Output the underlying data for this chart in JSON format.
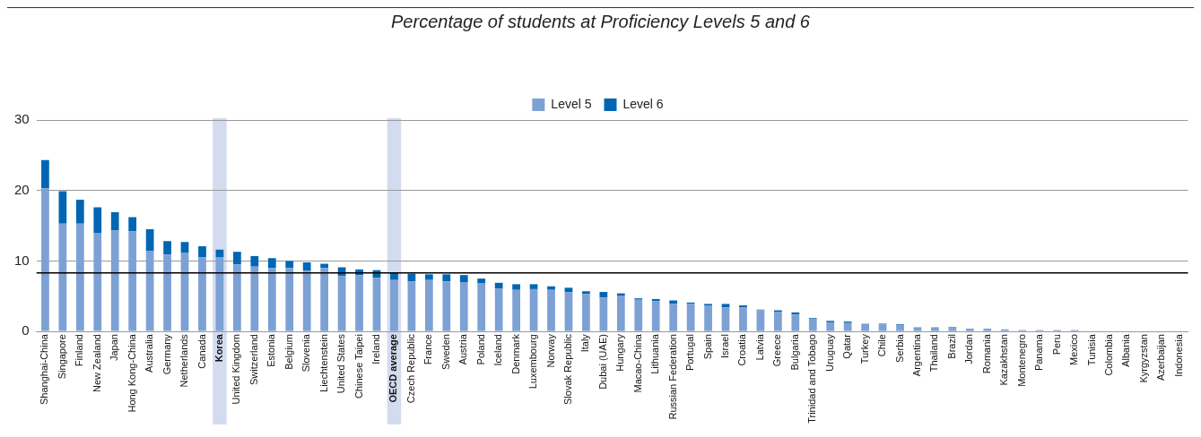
{
  "chart_data": {
    "type": "bar",
    "title": "Percentage of students at Proficiency Levels 5 and 6",
    "stacked": true,
    "categories": [
      "Shanghai-China",
      "Singapore",
      "Finland",
      "New Zealand",
      "Japan",
      "Hong Kong-China",
      "Australia",
      "Germany",
      "Netherlands",
      "Canada",
      "Korea",
      "United Kingdom",
      "Switzerland",
      "Estonia",
      "Belgium",
      "Slovenia",
      "Liechtenstein",
      "United States",
      "Chinese Taipei",
      "Ireland",
      "OECD average",
      "Czech Republic",
      "France",
      "Sweden",
      "Austria",
      "Poland",
      "Iceland",
      "Denmark",
      "Luxembourg",
      "Norway",
      "Slovak Republic",
      "Italy",
      "Dubai (UAE)",
      "Hungary",
      "Macao-China",
      "Lithuania",
      "Russian Federation",
      "Portugal",
      "Spain",
      "Israel",
      "Croatia",
      "Latvia",
      "Greece",
      "Bulgaria",
      "Trinidad and Tobago",
      "Uruguay",
      "Qatar",
      "Turkey",
      "Chile",
      "Serbia",
      "Argentina",
      "Thailand",
      "Brazil",
      "Jordan",
      "Romania",
      "Kazakhstan",
      "Montenegro",
      "Panama",
      "Peru",
      "Mexico",
      "Tunisia",
      "Colombia",
      "Albania",
      "Kyrgyzstan",
      "Azerbaijan",
      "Indonesia"
    ],
    "series": [
      {
        "name": "Level 5",
        "color": "#7da1d4",
        "values": [
          20.3,
          15.3,
          15.3,
          14.0,
          14.3,
          14.2,
          11.4,
          10.9,
          11.2,
          10.5,
          10.5,
          9.5,
          9.2,
          9.0,
          9.0,
          8.6,
          9.0,
          7.9,
          8.0,
          7.6,
          7.3,
          7.1,
          7.3,
          7.1,
          7.0,
          6.8,
          6.1,
          5.9,
          6.0,
          5.9,
          5.6,
          5.3,
          4.8,
          5.1,
          4.5,
          4.3,
          3.9,
          3.9,
          3.7,
          3.4,
          3.4,
          3.0,
          2.8,
          2.4,
          1.8,
          1.3,
          1.2,
          1.1,
          1.0,
          0.9,
          0.6,
          0.6,
          0.5,
          0.4,
          0.4,
          0.3,
          0.2,
          0.2,
          0.2,
          0.2,
          null,
          null,
          null,
          0.0,
          0.0,
          0.0
        ]
      },
      {
        "name": "Level 6",
        "color": "#0066b3",
        "values": [
          4.0,
          4.6,
          3.4,
          3.6,
          2.6,
          2.0,
          3.1,
          1.9,
          1.5,
          1.6,
          1.1,
          1.8,
          1.5,
          1.4,
          1.0,
          1.2,
          0.6,
          1.2,
          0.8,
          1.1,
          1.0,
          1.1,
          0.8,
          1.0,
          1.0,
          0.7,
          0.8,
          0.8,
          0.7,
          0.5,
          0.6,
          0.4,
          0.8,
          0.3,
          0.2,
          0.3,
          0.5,
          0.2,
          0.2,
          0.5,
          0.3,
          0.1,
          0.2,
          0.3,
          0.1,
          0.2,
          0.2,
          0.0,
          0.1,
          0.1,
          0.0,
          0.0,
          0.1,
          0.0,
          0.0,
          0.0,
          0.0,
          0.0,
          0.0,
          0.0,
          0.0,
          0.0,
          0.0,
          0.0,
          0.0,
          0.0
        ]
      }
    ],
    "ylim": [
      0,
      30
    ],
    "yticks": [
      0,
      10,
      20,
      30
    ],
    "grid": "y",
    "legend": "top",
    "ref_lines": [
      {
        "axis": "y",
        "value": 8.3,
        "color": "#000000"
      }
    ],
    "bands": [
      {
        "axis": "x",
        "from": "Korea",
        "to": "Korea",
        "color": "#d3dcee"
      },
      {
        "axis": "x",
        "from": "OECD average",
        "to": "OECD average",
        "color": "#d3dcee"
      }
    ]
  }
}
